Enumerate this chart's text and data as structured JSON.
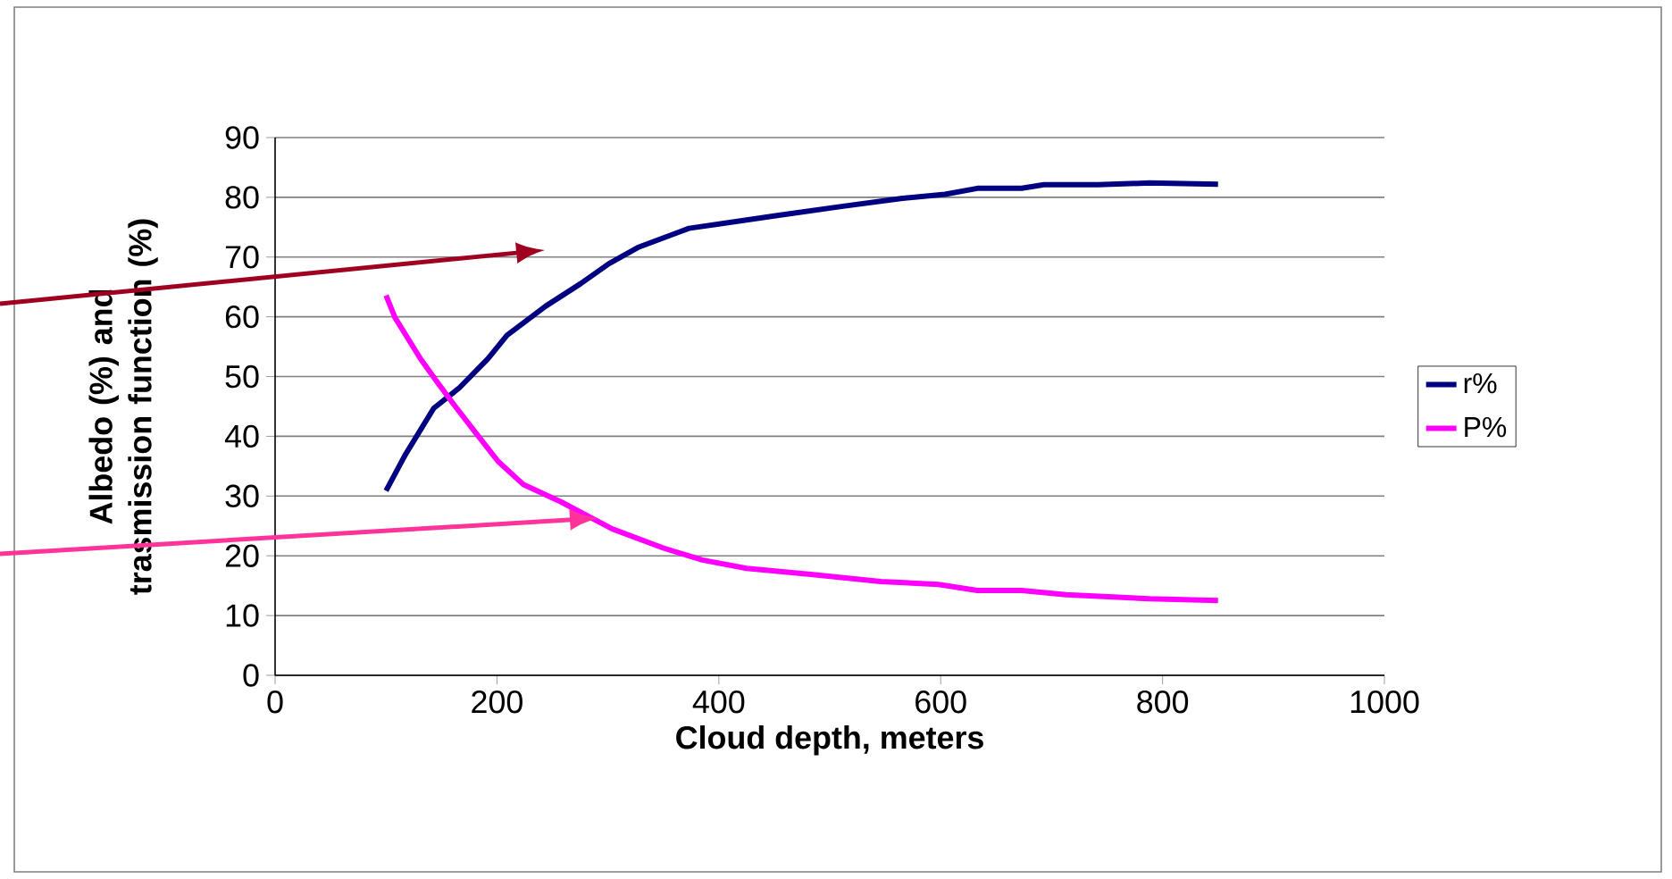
{
  "chart_data": {
    "type": "line",
    "xlabel": "Cloud depth, meters",
    "ylabel": "Albedo (%) and trasmission function (%)",
    "xlim": [
      0,
      1000
    ],
    "ylim": [
      0,
      90
    ],
    "xticks": [
      0,
      200,
      400,
      600,
      800,
      1000
    ],
    "yticks": [
      0,
      10,
      20,
      30,
      40,
      50,
      60,
      70,
      80,
      90
    ],
    "grid": "y",
    "legend": "right",
    "marker": "none",
    "line_style": "solid",
    "series": [
      {
        "name": "r%",
        "color": "#000080",
        "x": [
          100,
          117,
          143,
          166,
          192,
          209,
          244,
          275,
          301,
          327,
          373,
          454,
          512,
          564,
          604,
          633,
          673,
          693,
          742,
          788,
          850
        ],
        "values": [
          30.9,
          36.8,
          44.7,
          48.1,
          53,
          56.9,
          61.8,
          65.5,
          68.9,
          71.6,
          74.8,
          77,
          78.5,
          79.8,
          80.5,
          81.5,
          81.5,
          82.1,
          82.1,
          82.4,
          82.2
        ]
      },
      {
        "name": "P%",
        "color": "#ff00ff",
        "x": [
          100,
          108,
          131,
          146,
          160,
          177,
          201,
          224,
          258,
          304,
          350,
          385,
          425,
          483,
          546,
          598,
          633,
          673,
          713,
          788,
          850
        ],
        "values": [
          63.6,
          59.9,
          53,
          49.1,
          45.6,
          41.5,
          35.8,
          31.9,
          29,
          24.5,
          21.3,
          19.3,
          17.9,
          16.9,
          15.7,
          15.2,
          14.2,
          14.2,
          13.5,
          12.8,
          12.5
        ]
      }
    ]
  }
}
